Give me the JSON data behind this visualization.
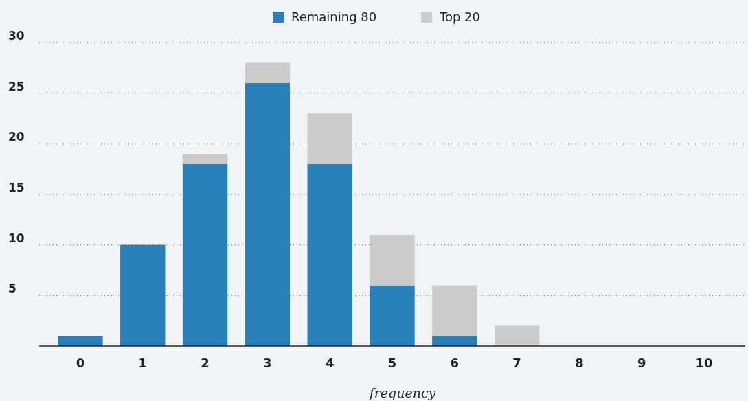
{
  "chart_data": {
    "type": "bar",
    "stacked": true,
    "xlabel": "frequency",
    "categories": [
      "0",
      "1",
      "2",
      "3",
      "4",
      "5",
      "6",
      "7",
      "8",
      "9",
      "10"
    ],
    "series": [
      {
        "name": "Remaining 80",
        "color": "#2780b8",
        "values": [
          1,
          10,
          18,
          26,
          18,
          6,
          1,
          0,
          0,
          0,
          0
        ]
      },
      {
        "name": "Top 20",
        "color": "#cbcbcb",
        "values": [
          0,
          0,
          1,
          2,
          5,
          5,
          5,
          2,
          0,
          0,
          0
        ]
      }
    ],
    "ylim": [
      0,
      30
    ],
    "yticks": [
      5,
      10,
      15,
      20,
      25,
      30
    ],
    "grid": "y",
    "legend": "top"
  }
}
